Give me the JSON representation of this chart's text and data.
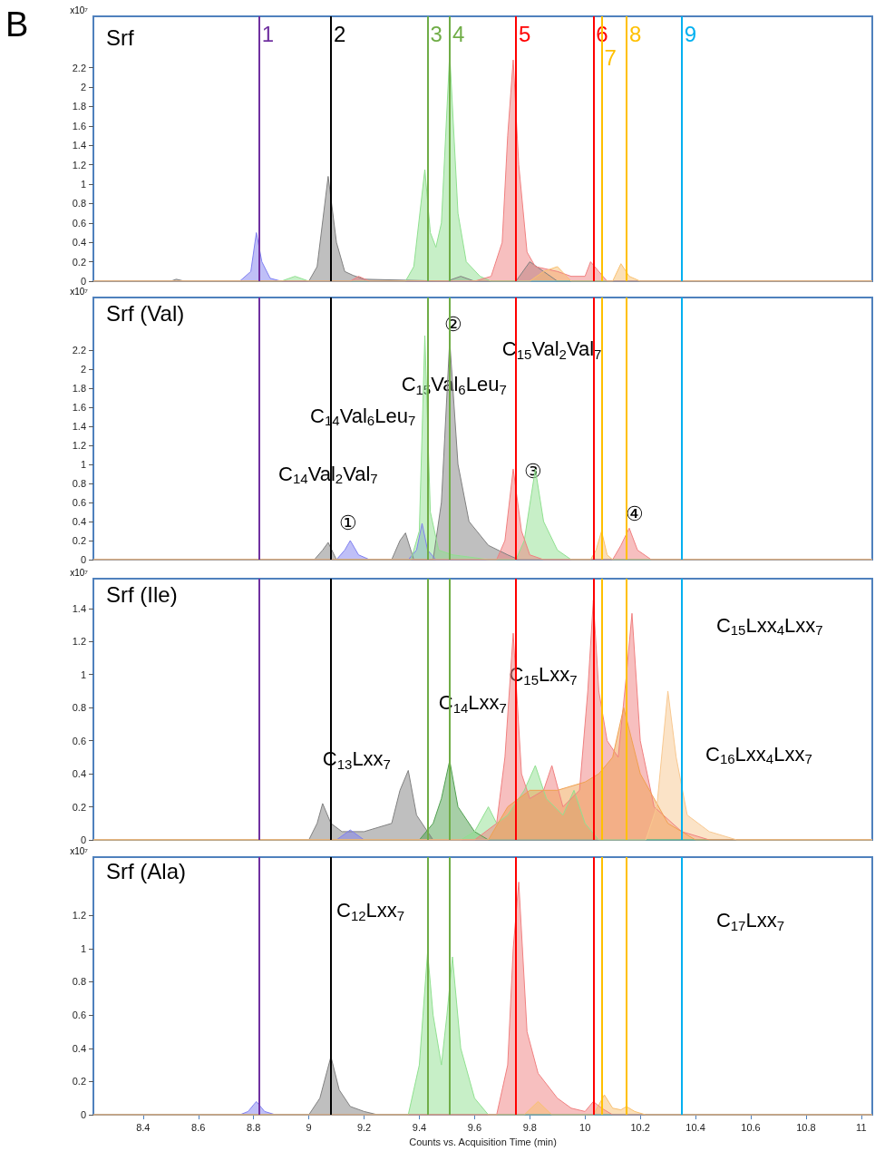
{
  "chart_data": [
    {
      "type": "area",
      "title": "Srf",
      "ylabel": "x10⁷",
      "annotations": [
        "B",
        {
          "text": "1",
          "x": 8.82,
          "y": 2.55
        },
        {
          "text": "2",
          "x": 9.08,
          "y": 2.55
        },
        {
          "text": "3",
          "x": 9.43,
          "y": 2.55
        },
        {
          "text": "4",
          "x": 9.51,
          "y": 2.55
        },
        {
          "text": "5",
          "x": 9.75,
          "y": 2.55
        },
        {
          "text": "6",
          "x": 10.03,
          "y": 2.55
        },
        {
          "text": "7",
          "x": 10.06,
          "y": 2.3
        },
        {
          "text": "8",
          "x": 10.15,
          "y": 2.55
        },
        {
          "text": "9",
          "x": 10.35,
          "y": 2.55
        }
      ],
      "xlim": [
        8.22,
        11.04
      ],
      "xticks": [
        8.4,
        8.6,
        8.8,
        9,
        9.2,
        9.4,
        9.6,
        9.8,
        10,
        10.2,
        10.4,
        10.6,
        10.8,
        11
      ],
      "ylim": [
        0,
        2.73
      ],
      "yticks": [
        0,
        0.2,
        0.4,
        0.6,
        0.8,
        1,
        1.2,
        1.4,
        1.6,
        1.8,
        2,
        2.2
      ],
      "tick_labels": "y",
      "grid": false,
      "marker": "none",
      "ref_lines": [
        {
          "axis": "x",
          "value": 8.82,
          "color": "#7030a0"
        },
        {
          "axis": "x",
          "value": 9.08,
          "color": "#000000"
        },
        {
          "axis": "x",
          "value": 9.43,
          "color": "#70ad47"
        },
        {
          "axis": "x",
          "value": 9.51,
          "color": "#70ad47"
        },
        {
          "axis": "x",
          "value": 9.75,
          "color": "#ff0000"
        },
        {
          "axis": "x",
          "value": 10.03,
          "color": "#ff0000"
        },
        {
          "axis": "x",
          "value": 10.06,
          "color": "#ffc000"
        },
        {
          "axis": "x",
          "value": 10.15,
          "color": "#ffc000"
        },
        {
          "axis": "x",
          "value": 10.35,
          "color": "#00b0f0"
        }
      ],
      "series": [
        {
          "color": "#8080f0",
          "x": [
            8.22,
            8.75,
            8.79,
            8.81,
            8.83,
            8.86,
            8.9,
            11.04
          ],
          "values": [
            0,
            0,
            0.1,
            0.5,
            0.2,
            0.03,
            0,
            0
          ]
        },
        {
          "color": "#808080",
          "x": [
            8.22,
            8.5,
            8.52,
            8.55,
            9.0,
            9.03,
            9.07,
            9.1,
            9.13,
            9.16,
            9.2,
            9.5,
            9.55,
            9.6,
            9.75,
            9.8,
            9.85,
            9.9,
            11.04
          ],
          "values": [
            0,
            0,
            0.02,
            0,
            0,
            0.15,
            1.08,
            0.4,
            0.1,
            0.06,
            0.02,
            0,
            0.05,
            0,
            0,
            0.2,
            0.1,
            0,
            0
          ]
        },
        {
          "color": "#90e090",
          "x": [
            8.22,
            8.9,
            8.95,
            9.0,
            9.35,
            9.38,
            9.42,
            9.44,
            9.46,
            9.48,
            9.51,
            9.54,
            9.57,
            9.62,
            9.66,
            11.04
          ],
          "values": [
            0,
            0,
            0.05,
            0,
            0,
            0.15,
            1.15,
            0.5,
            0.35,
            0.6,
            2.35,
            0.7,
            0.2,
            0.05,
            0,
            0
          ]
        },
        {
          "color": "#f08080",
          "x": [
            8.22,
            9.15,
            9.18,
            9.22,
            9.6,
            9.66,
            9.7,
            9.72,
            9.74,
            9.76,
            9.79,
            9.82,
            9.9,
            9.95,
            10.0,
            10.02,
            10.05,
            10.08,
            10.1,
            11.04
          ],
          "values": [
            0,
            0,
            0.05,
            0,
            0,
            0.05,
            0.4,
            1.5,
            2.28,
            1.2,
            0.3,
            0.15,
            0.1,
            0.05,
            0.05,
            0.2,
            0.1,
            0,
            0,
            0
          ]
        },
        {
          "color": "#f8c070",
          "x": [
            8.22,
            9.8,
            9.85,
            9.9,
            9.95,
            10.1,
            10.13,
            10.16,
            10.2,
            11.04
          ],
          "values": [
            0,
            0,
            0.1,
            0.15,
            0,
            0,
            0.18,
            0.05,
            0,
            0
          ]
        }
      ]
    },
    {
      "type": "area",
      "title": "Srf (Val)",
      "ylabel": "x10⁷",
      "xlim": [
        8.22,
        11.04
      ],
      "xticks": [
        8.4,
        8.6,
        8.8,
        9,
        9.2,
        9.4,
        9.6,
        9.8,
        10,
        10.2,
        10.4,
        10.6,
        10.8,
        11
      ],
      "ylim": [
        0,
        2.75
      ],
      "yticks": [
        0,
        0.2,
        0.4,
        0.6,
        0.8,
        1,
        1.2,
        1.4,
        1.6,
        1.8,
        2,
        2.2
      ],
      "tick_labels": "y",
      "grid": false,
      "marker": "none",
      "ref_lines": [
        {
          "axis": "x",
          "value": 8.82,
          "color": "#7030a0"
        },
        {
          "axis": "x",
          "value": 9.08,
          "color": "#000000"
        },
        {
          "axis": "x",
          "value": 9.43,
          "color": "#70ad47"
        },
        {
          "axis": "x",
          "value": 9.51,
          "color": "#70ad47"
        },
        {
          "axis": "x",
          "value": 9.75,
          "color": "#ff0000"
        },
        {
          "axis": "x",
          "value": 10.03,
          "color": "#ff0000"
        },
        {
          "axis": "x",
          "value": 10.06,
          "color": "#ffc000"
        },
        {
          "axis": "x",
          "value": 10.15,
          "color": "#ffc000"
        },
        {
          "axis": "x",
          "value": 10.35,
          "color": "#00b0f0"
        }
      ],
      "annotations": [
        "②",
        "①",
        "③",
        "④",
        "C$_{14}$Val$_{2}$Val$_{7}$",
        "C$_{14}$Val$_{6}$Leu$_{7}$",
        "C$_{15}$Val$_{6}$Leu$_{7}$",
        "C$_{15}$Val$_{2}$Val$_{7}$"
      ],
      "series": [
        {
          "color": "#808080",
          "x": [
            8.22,
            9.02,
            9.05,
            9.07,
            9.1,
            9.3,
            9.33,
            9.35,
            9.38,
            9.45,
            9.48,
            9.51,
            9.54,
            9.58,
            9.65,
            9.72,
            9.76,
            11.04
          ],
          "values": [
            0,
            0,
            0.1,
            0.18,
            0,
            0,
            0.2,
            0.28,
            0,
            0,
            0.6,
            2.3,
            1.0,
            0.4,
            0.15,
            0.05,
            0,
            0
          ]
        },
        {
          "color": "#8080f0",
          "x": [
            8.22,
            9.1,
            9.13,
            9.15,
            9.18,
            9.22,
            9.36,
            9.39,
            9.41,
            9.43,
            9.46,
            11.04
          ],
          "values": [
            0,
            0,
            0.1,
            0.2,
            0.05,
            0,
            0,
            0.1,
            0.38,
            0.1,
            0,
            0
          ]
        },
        {
          "color": "#90e090",
          "x": [
            8.22,
            9.37,
            9.4,
            9.42,
            9.44,
            9.47,
            9.52,
            9.6,
            9.65,
            9.75,
            9.78,
            9.82,
            9.85,
            9.9,
            9.95,
            11.04
          ],
          "values": [
            0,
            0,
            0.3,
            2.35,
            0.5,
            0.1,
            0.05,
            0.02,
            0,
            0,
            0.2,
            0.95,
            0.4,
            0.1,
            0,
            0
          ]
        },
        {
          "color": "#f08080",
          "x": [
            8.22,
            9.68,
            9.71,
            9.74,
            9.77,
            9.8,
            9.85,
            10.1,
            10.13,
            10.16,
            10.19,
            10.24,
            11.04
          ],
          "values": [
            0,
            0,
            0.2,
            0.95,
            0.3,
            0.05,
            0,
            0,
            0.15,
            0.33,
            0.1,
            0,
            0
          ]
        },
        {
          "color": "#f8c070",
          "x": [
            8.22,
            10.02,
            10.04,
            10.06,
            10.08,
            10.1,
            11.04
          ],
          "values": [
            0,
            0,
            0.1,
            0.3,
            0.05,
            0,
            0
          ]
        }
      ]
    },
    {
      "type": "area",
      "title": "Srf (Ile)",
      "ylabel": "x10⁷",
      "xlim": [
        8.22,
        11.04
      ],
      "xticks": [
        8.4,
        8.6,
        8.8,
        9,
        9.2,
        9.4,
        9.6,
        9.8,
        10,
        10.2,
        10.4,
        10.6,
        10.8,
        11
      ],
      "ylim": [
        0,
        1.58
      ],
      "yticks": [
        0,
        0.2,
        0.4,
        0.6,
        0.8,
        1,
        1.2,
        1.4
      ],
      "tick_labels": "y",
      "grid": false,
      "marker": "none",
      "ref_lines": [
        {
          "axis": "x",
          "value": 8.82,
          "color": "#7030a0"
        },
        {
          "axis": "x",
          "value": 9.08,
          "color": "#000000"
        },
        {
          "axis": "x",
          "value": 9.43,
          "color": "#70ad47"
        },
        {
          "axis": "x",
          "value": 9.51,
          "color": "#70ad47"
        },
        {
          "axis": "x",
          "value": 9.75,
          "color": "#ff0000"
        },
        {
          "axis": "x",
          "value": 10.03,
          "color": "#ff0000"
        },
        {
          "axis": "x",
          "value": 10.06,
          "color": "#ffc000"
        },
        {
          "axis": "x",
          "value": 10.15,
          "color": "#ffc000"
        },
        {
          "axis": "x",
          "value": 10.35,
          "color": "#00b0f0"
        }
      ],
      "annotations": [
        "C$_{13}$Lxx$_{7}$",
        "C$_{14}$Lxx$_{7}$",
        "C$_{15}$Lxx$_{7}$",
        "C$_{15}$Lxx$_{4}$Lxx$_{7}$",
        "C$_{16}$Lxx$_{4}$Lxx$_{7}$"
      ],
      "series": [
        {
          "color": "#808080",
          "x": [
            8.22,
            9.0,
            9.03,
            9.05,
            9.08,
            9.12,
            9.2,
            9.3,
            9.33,
            9.36,
            9.39,
            9.45,
            11.04
          ],
          "values": [
            0,
            0,
            0.1,
            0.22,
            0.1,
            0.05,
            0.05,
            0.1,
            0.3,
            0.42,
            0.15,
            0,
            0
          ]
        },
        {
          "color": "#8080f0",
          "x": [
            8.22,
            9.1,
            9.15,
            9.2,
            11.04
          ],
          "values": [
            0,
            0,
            0.06,
            0,
            0
          ]
        },
        {
          "color": "#50a050",
          "x": [
            8.22,
            9.4,
            9.45,
            9.48,
            9.51,
            9.54,
            9.6,
            9.65,
            11.04
          ],
          "values": [
            0,
            0,
            0.1,
            0.25,
            0.48,
            0.2,
            0.05,
            0,
            0
          ]
        },
        {
          "color": "#90e090",
          "x": [
            8.22,
            9.55,
            9.6,
            9.65,
            9.68,
            9.72,
            9.78,
            9.82,
            9.86,
            9.92,
            9.96,
            10.0,
            10.05,
            11.04
          ],
          "values": [
            0,
            0,
            0.05,
            0.2,
            0.1,
            0.15,
            0.3,
            0.45,
            0.25,
            0.15,
            0.3,
            0.1,
            0,
            0
          ]
        },
        {
          "color": "#f08080",
          "x": [
            8.22,
            9.6,
            9.68,
            9.71,
            9.74,
            9.77,
            9.8,
            9.85,
            9.88,
            9.92,
            9.98,
            10.01,
            10.03,
            10.05,
            10.08,
            10.12,
            10.15,
            10.17,
            10.2,
            10.25,
            10.35,
            10.45,
            11.04
          ],
          "values": [
            0,
            0,
            0.1,
            0.5,
            1.25,
            0.4,
            0.25,
            0.3,
            0.45,
            0.2,
            0.3,
            0.9,
            1.45,
            0.9,
            0.6,
            0.5,
            1.0,
            1.37,
            0.6,
            0.2,
            0.05,
            0,
            0
          ]
        },
        {
          "color": "#f0a050",
          "x": [
            8.22,
            9.65,
            9.72,
            9.8,
            9.9,
            10.0,
            10.05,
            10.1,
            10.14,
            10.2,
            10.3,
            10.4,
            11.04
          ],
          "values": [
            0,
            0,
            0.2,
            0.3,
            0.3,
            0.35,
            0.4,
            0.5,
            0.8,
            0.4,
            0.1,
            0,
            0
          ]
        },
        {
          "color": "#f8c890",
          "x": [
            8.22,
            10.22,
            10.26,
            10.3,
            10.33,
            10.37,
            10.45,
            10.55,
            11.04
          ],
          "values": [
            0,
            0,
            0.2,
            0.9,
            0.5,
            0.15,
            0.05,
            0,
            0
          ]
        }
      ]
    },
    {
      "type": "area",
      "title": "Srf (Ala)",
      "ylabel": "x10⁷",
      "xlabel": "Counts vs. Acquisition Time (min)",
      "xlim": [
        8.22,
        11.04
      ],
      "xticks": [
        8.4,
        8.6,
        8.8,
        9,
        9.2,
        9.4,
        9.6,
        9.8,
        10,
        10.2,
        10.4,
        10.6,
        10.8,
        11
      ],
      "ylim": [
        0,
        1.55
      ],
      "yticks": [
        0,
        0.2,
        0.4,
        0.6,
        0.8,
        1,
        1.2
      ],
      "grid": false,
      "marker": "none",
      "ref_lines": [
        {
          "axis": "x",
          "value": 8.82,
          "color": "#7030a0"
        },
        {
          "axis": "x",
          "value": 9.08,
          "color": "#000000"
        },
        {
          "axis": "x",
          "value": 9.43,
          "color": "#70ad47"
        },
        {
          "axis": "x",
          "value": 9.51,
          "color": "#70ad47"
        },
        {
          "axis": "x",
          "value": 9.75,
          "color": "#ff0000"
        },
        {
          "axis": "x",
          "value": 10.03,
          "color": "#ff0000"
        },
        {
          "axis": "x",
          "value": 10.06,
          "color": "#ffc000"
        },
        {
          "axis": "x",
          "value": 10.15,
          "color": "#ffc000"
        },
        {
          "axis": "x",
          "value": 10.35,
          "color": "#00b0f0"
        }
      ],
      "annotations": [
        "C$_{12}$Lxx$_{7}$",
        "C$_{17}$Lxx$_{7}$"
      ],
      "series": [
        {
          "color": "#8080f0",
          "x": [
            8.22,
            8.75,
            8.78,
            8.81,
            8.84,
            8.88,
            11.04
          ],
          "values": [
            0,
            0,
            0.02,
            0.08,
            0.02,
            0,
            0
          ]
        },
        {
          "color": "#808080",
          "x": [
            8.22,
            9.0,
            9.04,
            9.08,
            9.11,
            9.15,
            9.2,
            9.25,
            11.04
          ],
          "values": [
            0,
            0,
            0.1,
            0.35,
            0.15,
            0.05,
            0.02,
            0,
            0
          ]
        },
        {
          "color": "#90e090",
          "x": [
            8.22,
            9.36,
            9.4,
            9.43,
            9.45,
            9.48,
            9.5,
            9.52,
            9.55,
            9.6,
            9.65,
            11.04
          ],
          "values": [
            0,
            0,
            0.3,
            0.98,
            0.6,
            0.3,
            0.6,
            0.95,
            0.4,
            0.1,
            0,
            0
          ]
        },
        {
          "color": "#f08080",
          "x": [
            8.22,
            9.68,
            9.72,
            9.74,
            9.76,
            9.79,
            9.83,
            9.9,
            9.95,
            10.0,
            10.03,
            10.06,
            10.1,
            11.04
          ],
          "values": [
            0,
            0,
            0.3,
            1.0,
            1.4,
            0.5,
            0.25,
            0.1,
            0.04,
            0.02,
            0.08,
            0.04,
            0,
            0
          ]
        },
        {
          "color": "#f8c070",
          "x": [
            8.22,
            9.78,
            9.83,
            9.88,
            10.03,
            10.07,
            10.1,
            10.13,
            10.15,
            10.18,
            10.22,
            11.04
          ],
          "values": [
            0,
            0,
            0.08,
            0,
            0,
            0.12,
            0.04,
            0.03,
            0.05,
            0.02,
            0,
            0
          ]
        }
      ]
    }
  ]
}
